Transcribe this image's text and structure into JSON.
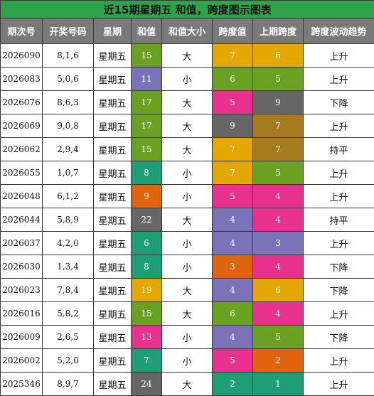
{
  "title": "近15期星期五 和值，跨度图示图表",
  "headers": [
    "期次号",
    "开奖号码",
    "星期",
    "和值",
    "和值大小",
    "跨度值",
    "上期跨度",
    "跨度波动趋势"
  ],
  "colors": {
    "title_bg": "#2ea44a",
    "header_bg": "#7a7a7a",
    "green": "#6aa123",
    "purple": "#7b72b9",
    "teal": "#1e9e74",
    "orange": "#e0630d",
    "gray": "#666666",
    "yellow": "#e4a700",
    "pink": "#e8318f",
    "brown": "#a67a1e"
  },
  "rows": [
    {
      "issue": "2026090",
      "numbers": "8,1,6",
      "weekday": "星期五",
      "sum": "15",
      "sum_color": "green",
      "size": "大",
      "span": "7",
      "span_color": "yellow",
      "prev_span": "6",
      "prev_color": "yellow",
      "trend": "上升"
    },
    {
      "issue": "2026083",
      "numbers": "5,0,6",
      "weekday": "星期五",
      "sum": "11",
      "sum_color": "purple",
      "size": "小",
      "span": "6",
      "span_color": "green",
      "prev_span": "5",
      "prev_color": "green",
      "trend": "上升"
    },
    {
      "issue": "2026076",
      "numbers": "8,6,3",
      "weekday": "星期五",
      "sum": "17",
      "sum_color": "green",
      "size": "大",
      "span": "5",
      "span_color": "pink",
      "prev_span": "9",
      "prev_color": "gray",
      "trend": "下降"
    },
    {
      "issue": "2026069",
      "numbers": "9,0,8",
      "weekday": "星期五",
      "sum": "17",
      "sum_color": "green",
      "size": "大",
      "span": "9",
      "span_color": "gray",
      "prev_span": "7",
      "prev_color": "brown",
      "trend": "上升"
    },
    {
      "issue": "2026062",
      "numbers": "2,9,4",
      "weekday": "星期五",
      "sum": "15",
      "sum_color": "green",
      "size": "大",
      "span": "7",
      "span_color": "yellow",
      "prev_span": "7",
      "prev_color": "brown",
      "trend": "持平"
    },
    {
      "issue": "2026055",
      "numbers": "1,0,7",
      "weekday": "星期五",
      "sum": "8",
      "sum_color": "teal",
      "size": "小",
      "span": "7",
      "span_color": "yellow",
      "prev_span": "5",
      "prev_color": "green",
      "trend": "上升"
    },
    {
      "issue": "2026048",
      "numbers": "6,1,2",
      "weekday": "星期五",
      "sum": "9",
      "sum_color": "orange",
      "size": "小",
      "span": "5",
      "span_color": "pink",
      "prev_span": "4",
      "prev_color": "pink",
      "trend": "上升"
    },
    {
      "issue": "2026044",
      "numbers": "5,8,9",
      "weekday": "星期五",
      "sum": "22",
      "sum_color": "gray",
      "size": "大",
      "span": "4",
      "span_color": "purple",
      "prev_span": "4",
      "prev_color": "pink",
      "trend": "持平"
    },
    {
      "issue": "2026037",
      "numbers": "4,2,0",
      "weekday": "星期五",
      "sum": "6",
      "sum_color": "teal",
      "size": "小",
      "span": "4",
      "span_color": "purple",
      "prev_span": "3",
      "prev_color": "purple",
      "trend": "上升"
    },
    {
      "issue": "2026030",
      "numbers": "1,3,4",
      "weekday": "星期五",
      "sum": "8",
      "sum_color": "teal",
      "size": "小",
      "span": "3",
      "span_color": "orange",
      "prev_span": "4",
      "prev_color": "pink",
      "trend": "下降"
    },
    {
      "issue": "2026023",
      "numbers": "7,8,4",
      "weekday": "星期五",
      "sum": "19",
      "sum_color": "yellow",
      "size": "大",
      "span": "4",
      "span_color": "purple",
      "prev_span": "6",
      "prev_color": "yellow",
      "trend": "下降"
    },
    {
      "issue": "2026016",
      "numbers": "5,8,2",
      "weekday": "星期五",
      "sum": "15",
      "sum_color": "green",
      "size": "大",
      "span": "6",
      "span_color": "green",
      "prev_span": "4",
      "prev_color": "pink",
      "trend": "上升"
    },
    {
      "issue": "2026009",
      "numbers": "2,6,5",
      "weekday": "星期五",
      "sum": "13",
      "sum_color": "pink",
      "size": "小",
      "span": "4",
      "span_color": "purple",
      "prev_span": "5",
      "prev_color": "green",
      "trend": "下降"
    },
    {
      "issue": "2026002",
      "numbers": "5,2,0",
      "weekday": "星期五",
      "sum": "7",
      "sum_color": "teal",
      "size": "小",
      "span": "5",
      "span_color": "pink",
      "prev_span": "2",
      "prev_color": "orange",
      "trend": "上升"
    },
    {
      "issue": "2025346",
      "numbers": "8,9,7",
      "weekday": "星期五",
      "sum": "24",
      "sum_color": "gray",
      "size": "大",
      "span": "2",
      "span_color": "teal",
      "prev_span": "1",
      "prev_color": "teal",
      "trend": "上升"
    }
  ]
}
